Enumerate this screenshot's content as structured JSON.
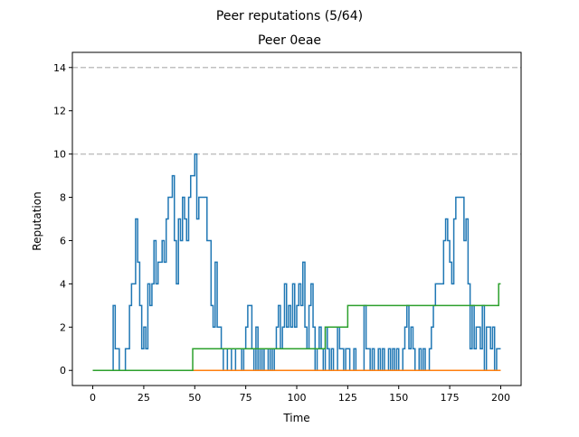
{
  "figure": {
    "suptitle": "Peer reputations (5/64)"
  },
  "chart_data": {
    "type": "line",
    "title": "Peer 0eae",
    "xlabel": "Time",
    "ylabel": "Reputation",
    "xlim": [
      -10,
      210
    ],
    "ylim": [
      -0.7,
      14.7
    ],
    "xticks": [
      0,
      25,
      50,
      75,
      100,
      125,
      150,
      175,
      200
    ],
    "yticks": [
      0,
      2,
      4,
      6,
      8,
      10,
      12,
      14
    ],
    "hlines": [
      {
        "y": 10,
        "color": "#c0c0c0",
        "style": "dashed"
      },
      {
        "y": 14,
        "color": "#c0c0c0",
        "style": "dashed"
      }
    ],
    "series": [
      {
        "color": "#1f77b4",
        "step": true,
        "points": [
          [
            0,
            0
          ],
          [
            10,
            0
          ],
          [
            10,
            3
          ],
          [
            11,
            3
          ],
          [
            11,
            1
          ],
          [
            13,
            1
          ],
          [
            13,
            0
          ],
          [
            16,
            0
          ],
          [
            16,
            1
          ],
          [
            18,
            1
          ],
          [
            18,
            3
          ],
          [
            19,
            3
          ],
          [
            19,
            4
          ],
          [
            21,
            4
          ],
          [
            21,
            7
          ],
          [
            22,
            7
          ],
          [
            22,
            5
          ],
          [
            23,
            5
          ],
          [
            23,
            3
          ],
          [
            24,
            3
          ],
          [
            24,
            1
          ],
          [
            25,
            1
          ],
          [
            25,
            2
          ],
          [
            26,
            2
          ],
          [
            26,
            1
          ],
          [
            27,
            1
          ],
          [
            27,
            4
          ],
          [
            28,
            4
          ],
          [
            28,
            3
          ],
          [
            29,
            3
          ],
          [
            29,
            4
          ],
          [
            30,
            4
          ],
          [
            30,
            6
          ],
          [
            31,
            6
          ],
          [
            31,
            4
          ],
          [
            32,
            4
          ],
          [
            32,
            5
          ],
          [
            34,
            5
          ],
          [
            34,
            6
          ],
          [
            35,
            6
          ],
          [
            35,
            5
          ],
          [
            36,
            5
          ],
          [
            36,
            7
          ],
          [
            37,
            7
          ],
          [
            37,
            8
          ],
          [
            39,
            8
          ],
          [
            39,
            9
          ],
          [
            40,
            9
          ],
          [
            40,
            6
          ],
          [
            41,
            6
          ],
          [
            41,
            4
          ],
          [
            42,
            4
          ],
          [
            42,
            7
          ],
          [
            43,
            7
          ],
          [
            43,
            6
          ],
          [
            44,
            6
          ],
          [
            44,
            8
          ],
          [
            45,
            8
          ],
          [
            45,
            7
          ],
          [
            46,
            7
          ],
          [
            46,
            6
          ],
          [
            47,
            6
          ],
          [
            47,
            8
          ],
          [
            48,
            8
          ],
          [
            48,
            9
          ],
          [
            50,
            9
          ],
          [
            50,
            10
          ],
          [
            51,
            10
          ],
          [
            51,
            7
          ],
          [
            52,
            7
          ],
          [
            52,
            8
          ],
          [
            56,
            8
          ],
          [
            56,
            6
          ],
          [
            58,
            6
          ],
          [
            58,
            3
          ],
          [
            59,
            3
          ],
          [
            59,
            2
          ],
          [
            60,
            2
          ],
          [
            60,
            5
          ],
          [
            61,
            5
          ],
          [
            61,
            2
          ],
          [
            63,
            2
          ],
          [
            63,
            1
          ],
          [
            64,
            1
          ],
          [
            64,
            0
          ],
          [
            66,
            0
          ],
          [
            66,
            1
          ],
          [
            68,
            1
          ],
          [
            68,
            0
          ],
          [
            70,
            0
          ],
          [
            70,
            1
          ],
          [
            73,
            1
          ],
          [
            73,
            0
          ],
          [
            74,
            0
          ],
          [
            74,
            1
          ],
          [
            75,
            1
          ],
          [
            75,
            2
          ],
          [
            76,
            2
          ],
          [
            76,
            3
          ],
          [
            78,
            3
          ],
          [
            78,
            1
          ],
          [
            79,
            1
          ],
          [
            79,
            0
          ],
          [
            80,
            0
          ],
          [
            80,
            2
          ],
          [
            81,
            2
          ],
          [
            81,
            0
          ],
          [
            82,
            0
          ],
          [
            82,
            1
          ],
          [
            83,
            1
          ],
          [
            83,
            0
          ],
          [
            84,
            0
          ],
          [
            84,
            1
          ],
          [
            86,
            1
          ],
          [
            86,
            0
          ],
          [
            87,
            0
          ],
          [
            87,
            1
          ],
          [
            88,
            1
          ],
          [
            88,
            0
          ],
          [
            89,
            0
          ],
          [
            89,
            1
          ],
          [
            90,
            1
          ],
          [
            90,
            2
          ],
          [
            91,
            2
          ],
          [
            91,
            3
          ],
          [
            92,
            3
          ],
          [
            92,
            1
          ],
          [
            93,
            1
          ],
          [
            93,
            2
          ],
          [
            94,
            2
          ],
          [
            94,
            4
          ],
          [
            95,
            4
          ],
          [
            95,
            2
          ],
          [
            96,
            2
          ],
          [
            96,
            3
          ],
          [
            97,
            3
          ],
          [
            97,
            2
          ],
          [
            98,
            2
          ],
          [
            98,
            4
          ],
          [
            99,
            4
          ],
          [
            99,
            2
          ],
          [
            100,
            2
          ],
          [
            100,
            3
          ],
          [
            101,
            3
          ],
          [
            101,
            4
          ],
          [
            102,
            4
          ],
          [
            102,
            3
          ],
          [
            103,
            3
          ],
          [
            103,
            5
          ],
          [
            104,
            5
          ],
          [
            104,
            2
          ],
          [
            105,
            2
          ],
          [
            105,
            1
          ],
          [
            106,
            1
          ],
          [
            106,
            3
          ],
          [
            107,
            3
          ],
          [
            107,
            4
          ],
          [
            108,
            4
          ],
          [
            108,
            2
          ],
          [
            109,
            2
          ],
          [
            109,
            0
          ],
          [
            110,
            0
          ],
          [
            110,
            1
          ],
          [
            111,
            1
          ],
          [
            111,
            2
          ],
          [
            112,
            2
          ],
          [
            112,
            1
          ],
          [
            113,
            1
          ],
          [
            113,
            0
          ],
          [
            114,
            0
          ],
          [
            114,
            2
          ],
          [
            115,
            2
          ],
          [
            115,
            1
          ],
          [
            116,
            1
          ],
          [
            116,
            0
          ],
          [
            117,
            0
          ],
          [
            117,
            1
          ],
          [
            118,
            1
          ],
          [
            118,
            0
          ],
          [
            120,
            0
          ],
          [
            120,
            2
          ],
          [
            121,
            2
          ],
          [
            121,
            1
          ],
          [
            123,
            1
          ],
          [
            123,
            0
          ],
          [
            124,
            0
          ],
          [
            124,
            1
          ],
          [
            126,
            1
          ],
          [
            126,
            0
          ],
          [
            128,
            0
          ],
          [
            128,
            1
          ],
          [
            129,
            1
          ],
          [
            129,
            0
          ],
          [
            133,
            0
          ],
          [
            133,
            3
          ],
          [
            134,
            3
          ],
          [
            134,
            1
          ],
          [
            136,
            1
          ],
          [
            136,
            0
          ],
          [
            137,
            0
          ],
          [
            137,
            1
          ],
          [
            138,
            1
          ],
          [
            138,
            0
          ],
          [
            140,
            0
          ],
          [
            140,
            1
          ],
          [
            141,
            1
          ],
          [
            141,
            0
          ],
          [
            142,
            0
          ],
          [
            142,
            1
          ],
          [
            143,
            1
          ],
          [
            143,
            0
          ],
          [
            145,
            0
          ],
          [
            145,
            1
          ],
          [
            146,
            1
          ],
          [
            146,
            0
          ],
          [
            147,
            0
          ],
          [
            147,
            1
          ],
          [
            148,
            1
          ],
          [
            148,
            0
          ],
          [
            149,
            0
          ],
          [
            149,
            1
          ],
          [
            150,
            1
          ],
          [
            150,
            0
          ],
          [
            152,
            0
          ],
          [
            152,
            1
          ],
          [
            153,
            1
          ],
          [
            153,
            2
          ],
          [
            154,
            2
          ],
          [
            154,
            3
          ],
          [
            155,
            3
          ],
          [
            155,
            1
          ],
          [
            156,
            1
          ],
          [
            156,
            2
          ],
          [
            157,
            2
          ],
          [
            157,
            1
          ],
          [
            158,
            1
          ],
          [
            158,
            0
          ],
          [
            160,
            0
          ],
          [
            160,
            1
          ],
          [
            161,
            1
          ],
          [
            161,
            0
          ],
          [
            162,
            0
          ],
          [
            162,
            1
          ],
          [
            163,
            1
          ],
          [
            163,
            0
          ],
          [
            165,
            0
          ],
          [
            165,
            1
          ],
          [
            166,
            1
          ],
          [
            166,
            2
          ],
          [
            167,
            2
          ],
          [
            167,
            3
          ],
          [
            168,
            3
          ],
          [
            168,
            4
          ],
          [
            172,
            4
          ],
          [
            172,
            6
          ],
          [
            173,
            6
          ],
          [
            173,
            7
          ],
          [
            174,
            7
          ],
          [
            174,
            6
          ],
          [
            175,
            6
          ],
          [
            175,
            5
          ],
          [
            176,
            5
          ],
          [
            176,
            4
          ],
          [
            177,
            4
          ],
          [
            177,
            7
          ],
          [
            178,
            7
          ],
          [
            178,
            8
          ],
          [
            182,
            8
          ],
          [
            182,
            6
          ],
          [
            183,
            6
          ],
          [
            183,
            7
          ],
          [
            184,
            7
          ],
          [
            184,
            4
          ],
          [
            185,
            4
          ],
          [
            185,
            1
          ],
          [
            186,
            1
          ],
          [
            186,
            3
          ],
          [
            187,
            3
          ],
          [
            187,
            1
          ],
          [
            188,
            1
          ],
          [
            188,
            2
          ],
          [
            190,
            2
          ],
          [
            190,
            1
          ],
          [
            191,
            1
          ],
          [
            191,
            3
          ],
          [
            192,
            3
          ],
          [
            192,
            0
          ],
          [
            193,
            0
          ],
          [
            193,
            2
          ],
          [
            195,
            2
          ],
          [
            195,
            1
          ],
          [
            196,
            1
          ],
          [
            196,
            2
          ],
          [
            197,
            2
          ],
          [
            197,
            0
          ],
          [
            198,
            0
          ],
          [
            198,
            1
          ],
          [
            200,
            1
          ]
        ]
      },
      {
        "color": "#ff7f0e",
        "step": true,
        "points": [
          [
            0,
            0
          ],
          [
            200,
            0
          ]
        ]
      },
      {
        "color": "#2ca02c",
        "step": true,
        "points": [
          [
            0,
            0
          ],
          [
            49,
            0
          ],
          [
            49,
            1
          ],
          [
            114,
            1
          ],
          [
            114,
            2
          ],
          [
            125,
            2
          ],
          [
            125,
            3
          ],
          [
            199,
            3
          ],
          [
            199,
            4
          ],
          [
            200,
            4
          ]
        ]
      }
    ]
  }
}
